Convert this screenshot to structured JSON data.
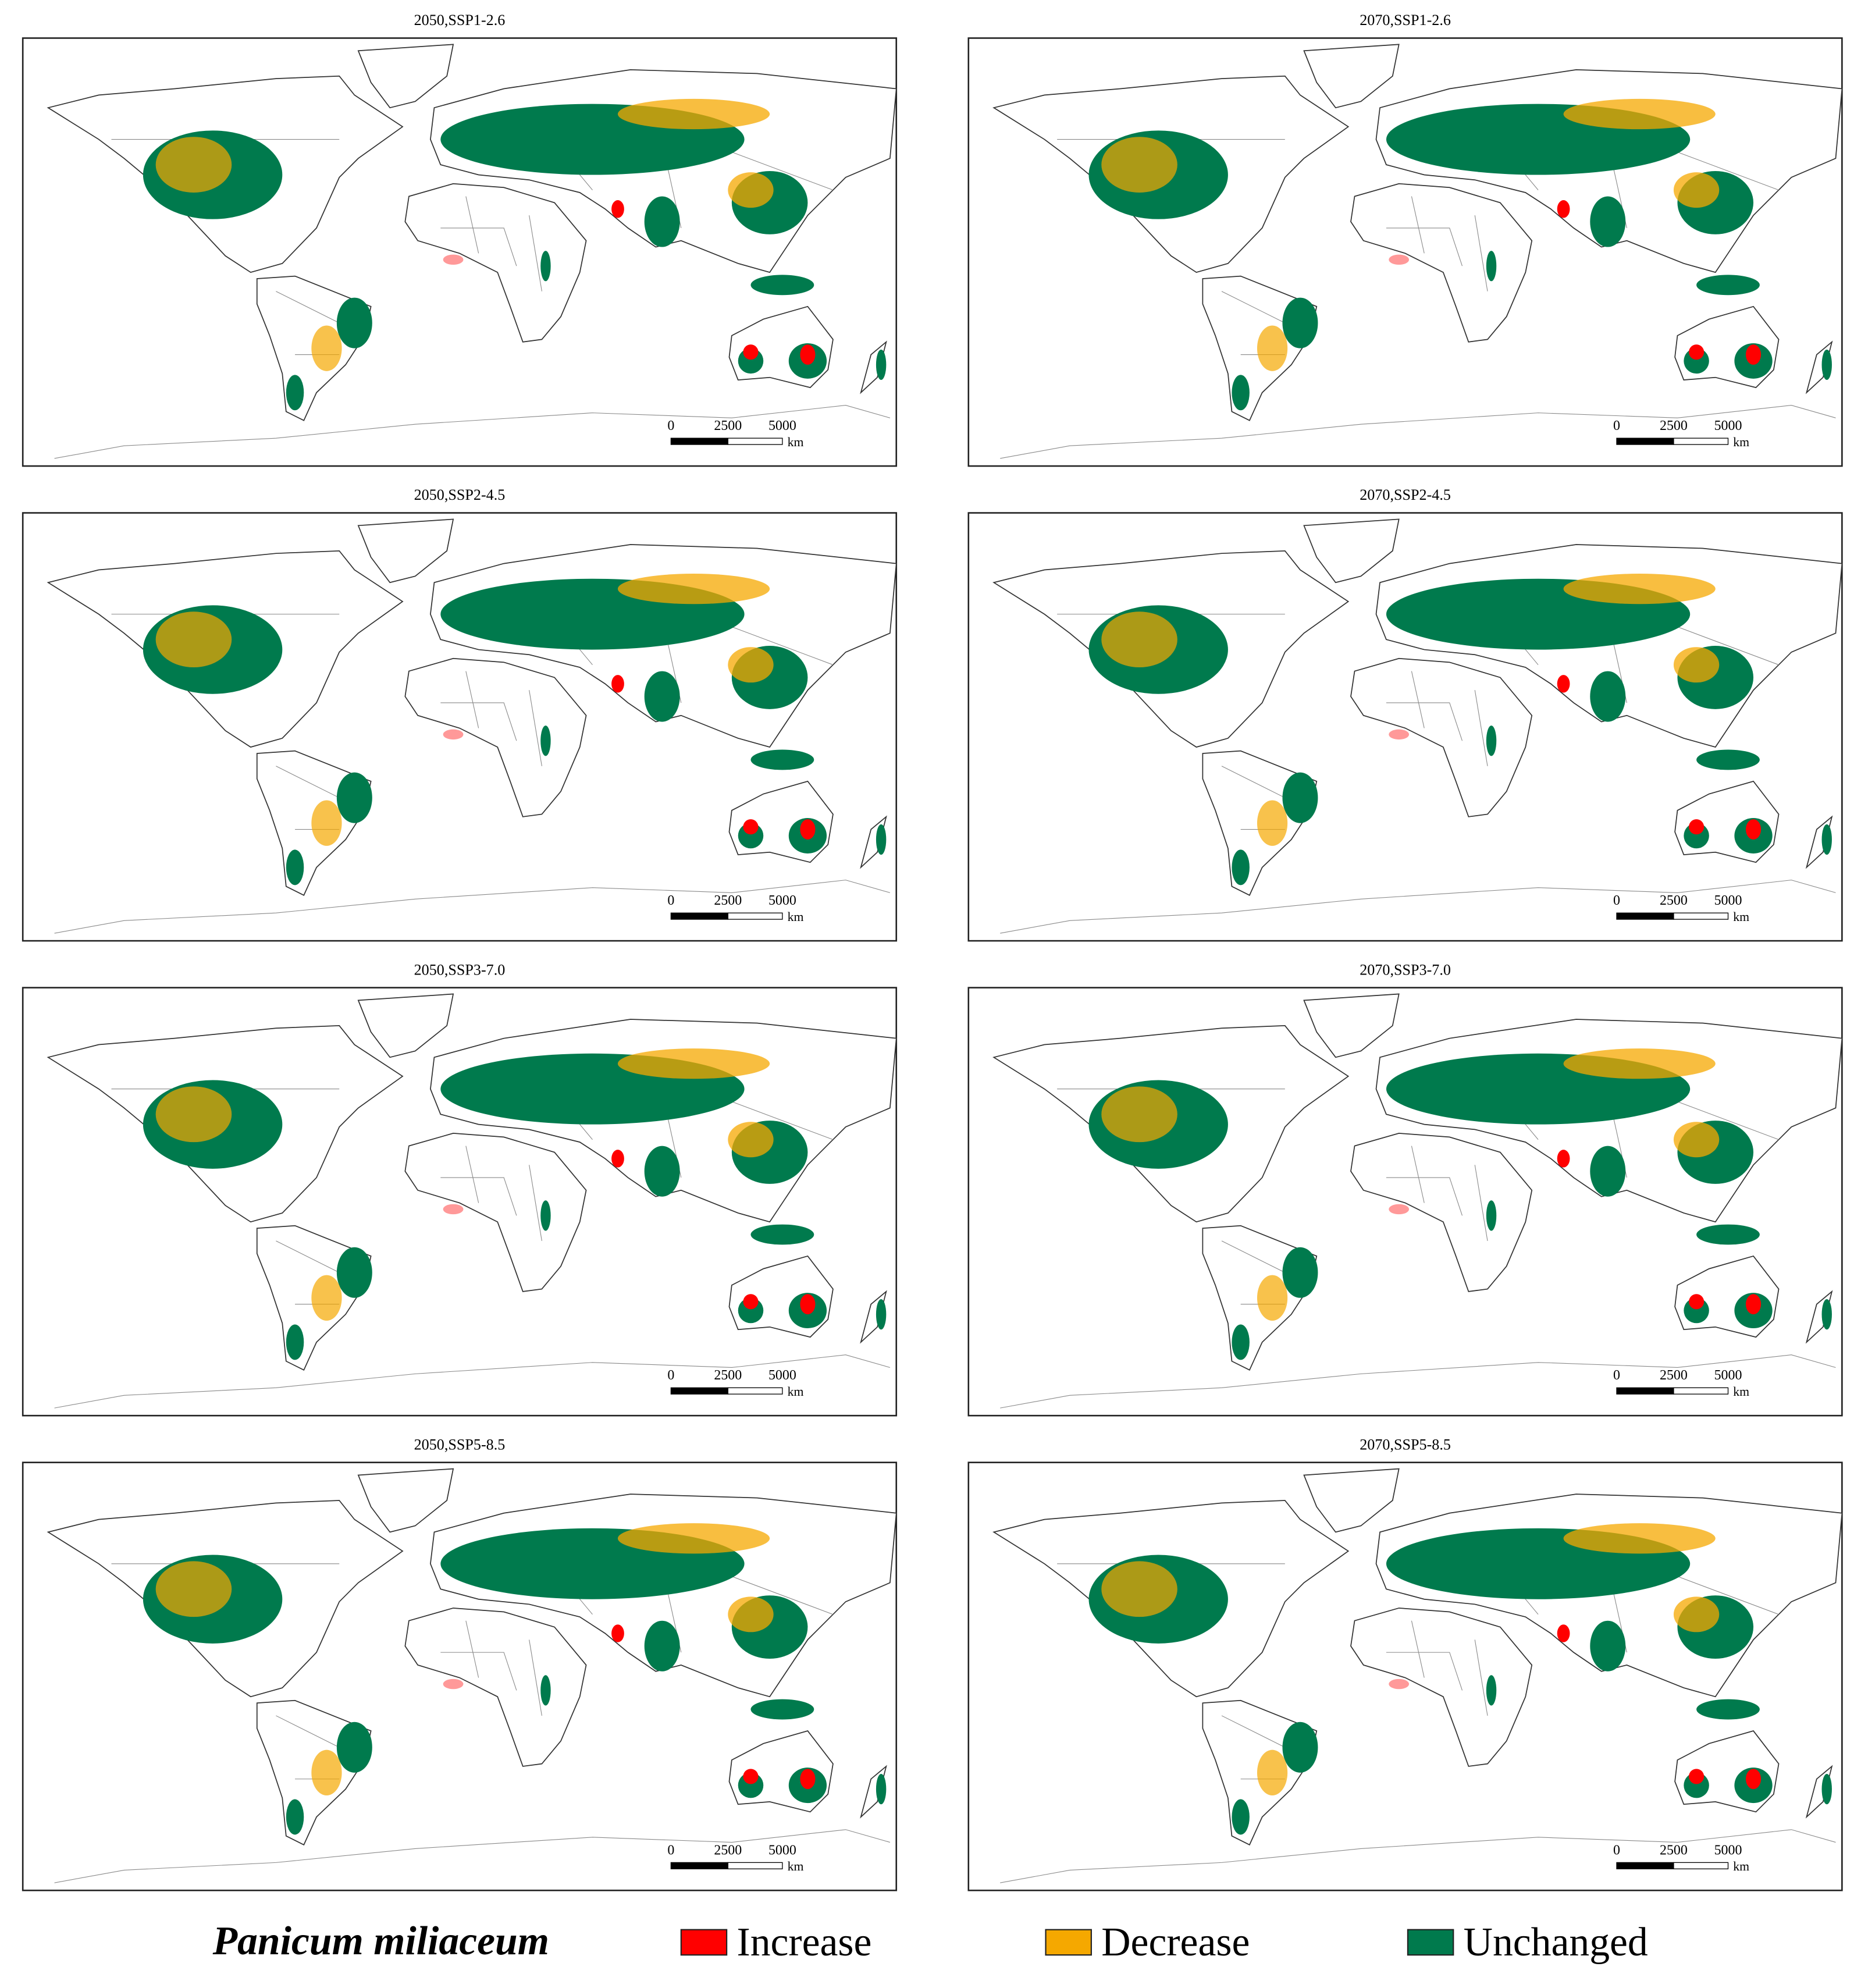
{
  "panels": [
    {
      "title": "2050,SSP1-2.6"
    },
    {
      "title": "2070,SSP1-2.6"
    },
    {
      "title": "2050,SSP2-4.5"
    },
    {
      "title": "2070,SSP2-4.5"
    },
    {
      "title": "2050,SSP3-7.0"
    },
    {
      "title": "2070,SSP3-7.0"
    },
    {
      "title": "2050,SSP5-8.5"
    },
    {
      "title": "2070,SSP5-8.5"
    }
  ],
  "scale_bar": {
    "labels": [
      "0",
      "2500",
      "5000"
    ],
    "unit": "km"
  },
  "legend": {
    "title": "Panicum miliaceum",
    "items": [
      {
        "label": "Increase",
        "color": "#ff0000"
      },
      {
        "label": "Decrease",
        "color": "#f5a800"
      },
      {
        "label": "Unchanged",
        "color": "#007a4d"
      }
    ]
  }
}
